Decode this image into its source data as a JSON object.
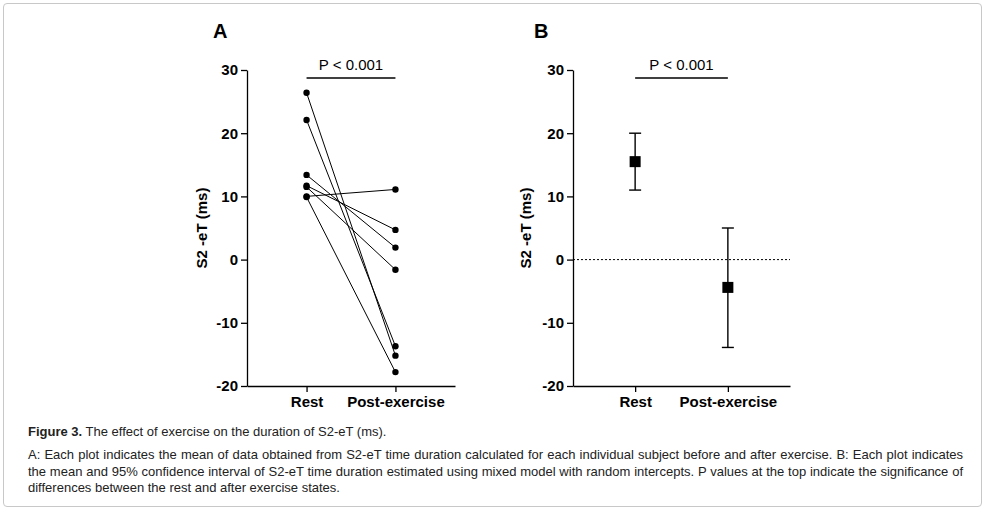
{
  "chart_data": [
    {
      "type": "paired",
      "title": "A",
      "y_label": "S2 -eT (ms)",
      "categories": [
        "Rest",
        "Post-exercise"
      ],
      "series": [
        {
          "values": [
            26.4,
            -15.2
          ],
          "color": "#000000"
        },
        {
          "values": [
            22.1,
            -13.7
          ],
          "color": "#000000"
        },
        {
          "values": [
            13.4,
            1.9
          ],
          "color": "#000000"
        },
        {
          "values": [
            11.7,
            4.7
          ],
          "color": "#000000"
        },
        {
          "values": [
            10.0,
            11.1
          ],
          "color": "#000000"
        },
        {
          "values": [
            11.5,
            -1.6
          ],
          "color": "#000000"
        },
        {
          "values": [
            9.9,
            -17.8
          ],
          "color": "#000000"
        }
      ],
      "marker": "circle",
      "ylim": [
        -20,
        30
      ],
      "yticks": [
        -20,
        -10,
        0,
        10,
        20,
        30
      ],
      "annotations": [
        {
          "text": "P < 0.001"
        }
      ]
    },
    {
      "type": "errorbar",
      "title": "B",
      "y_label": "S2 -eT (ms)",
      "categories": [
        "Rest",
        "Post-exercise"
      ],
      "values": [
        15.5,
        -4.4
      ],
      "ci_low": [
        11.0,
        -13.9
      ],
      "ci_high": [
        20.0,
        5.0
      ],
      "color": "#000000",
      "marker": "square",
      "reference_line": 0,
      "ylim": [
        -20,
        30
      ],
      "yticks": [
        -20,
        -10,
        0,
        10,
        20,
        30
      ],
      "annotations": [
        {
          "text": "P < 0.001"
        }
      ]
    }
  ],
  "caption": {
    "label": "Figure 3.",
    "title": "The effect of exercise on the duration of S2-eT (ms).",
    "text": "A: Each plot indicates the mean of data obtained from S2-eT time duration calculated for each individual subject before and after exercise. B: Each plot indicates the mean and 95% confidence interval of S2-eT time duration estimated using mixed model with random intercepts. P values at the top indicate the significance of differences between the rest and after exercise states."
  }
}
